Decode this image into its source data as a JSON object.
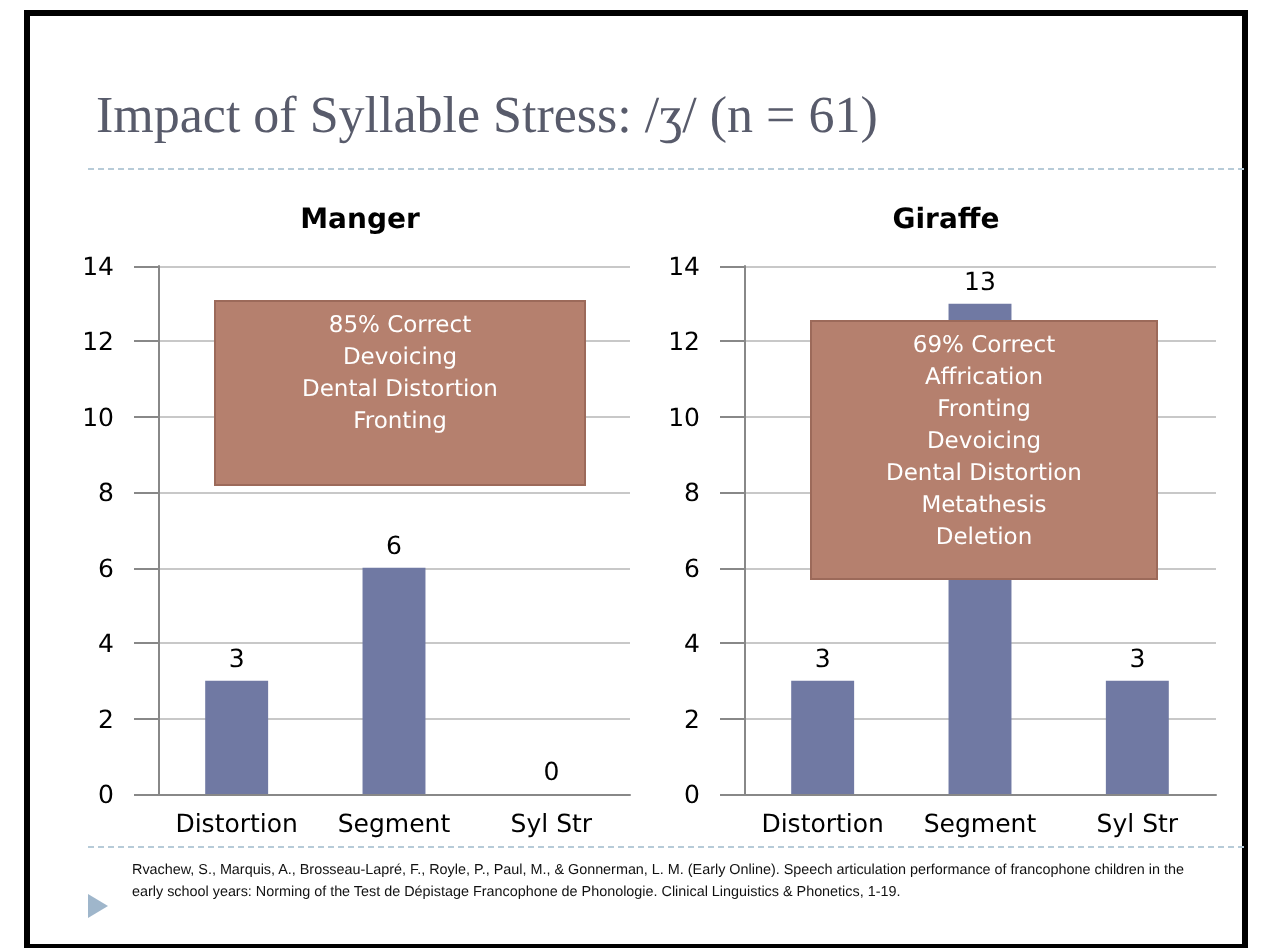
{
  "chart_data": [
    {
      "type": "other",
      "title": "Impact of Syllable Stress: /ʒ/ (n = 61)",
      "annotations": [
        "Rvachew, S., Marquis, A., Brosseau-Lapré, F., Royle, P., Paul, M., & Gonnerman, L. M. (Early Online). Speech articulation performance of francophone children in the early school years: Norming of the Test de Dépistage Francophone de Phonologie. Clinical Linguistics & Phonetics, 1-19."
      ]
    },
    {
      "type": "bar",
      "title": "Manger",
      "categories": [
        "Distortion",
        "Segment",
        "Syl Str"
      ],
      "values": [
        3,
        6,
        0
      ],
      "color": "#7079a3",
      "ylim": [
        0,
        14
      ],
      "yticks": [
        0,
        2,
        4,
        6,
        8,
        10,
        12,
        14
      ],
      "grid": "y",
      "data_labels": true,
      "annotations": [
        "85% Correct\nDevoicing\nDental Distortion\nFronting"
      ]
    },
    {
      "type": "bar",
      "title": "Giraffe",
      "categories": [
        "Distortion",
        "Segment",
        "Syl Str"
      ],
      "values": [
        3,
        13,
        3
      ],
      "color": "#7079a3",
      "ylim": [
        0,
        14
      ],
      "yticks": [
        0,
        2,
        4,
        6,
        8,
        10,
        12,
        14
      ],
      "grid": "y",
      "data_labels": true,
      "annotations": [
        "69% Correct\nAffrication\nFronting\nDevoicing\nDental Distortion\nMetathesis\nDeletion"
      ]
    }
  ]
}
